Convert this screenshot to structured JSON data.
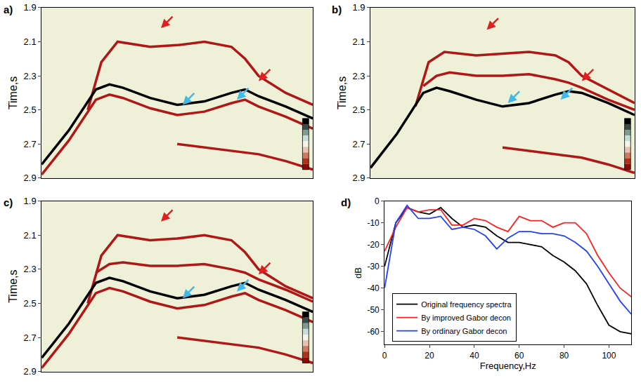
{
  "chart_data": [
    {
      "type": "seismic",
      "label": "a)",
      "y_label": "Time,s",
      "xlim": [
        0,
        100
      ],
      "ylim": [
        2.9,
        1.9
      ],
      "yticks": [
        1.9,
        2.1,
        2.3,
        2.5,
        2.7,
        2.9
      ],
      "tick_labels": "y",
      "series": [
        {
          "color": "#b01818",
          "x": [
            17,
            22,
            28,
            40,
            50,
            60,
            70,
            75,
            80,
            90,
            100
          ],
          "values": [
            2.5,
            2.22,
            2.1,
            2.13,
            2.12,
            2.1,
            2.13,
            2.2,
            2.3,
            2.4,
            2.47
          ]
        },
        {
          "color": "#000000",
          "x": [
            0,
            10,
            20,
            25,
            30,
            40,
            50,
            60,
            70,
            75,
            80,
            90,
            100
          ],
          "values": [
            2.82,
            2.62,
            2.38,
            2.35,
            2.37,
            2.43,
            2.47,
            2.45,
            2.4,
            2.38,
            2.42,
            2.48,
            2.55
          ]
        },
        {
          "color": "#b01818",
          "x": [
            0,
            10,
            20,
            25,
            30,
            40,
            50,
            60,
            70,
            75,
            80,
            90,
            100
          ],
          "values": [
            2.88,
            2.68,
            2.44,
            2.41,
            2.43,
            2.49,
            2.53,
            2.51,
            2.46,
            2.44,
            2.48,
            2.54,
            2.61
          ]
        },
        {
          "color": "#b01818",
          "x": [
            50,
            60,
            70,
            80,
            90,
            100
          ],
          "values": [
            2.7,
            2.72,
            2.74,
            2.76,
            2.8,
            2.85
          ]
        }
      ],
      "arrows": [
        {
          "x": 44,
          "y": 2.02,
          "color": "#e02020"
        },
        {
          "x": 80,
          "y": 2.33,
          "color": "#e02020"
        },
        {
          "x": 52,
          "y": 2.47,
          "color": "#40b8e8"
        },
        {
          "x": 72,
          "y": 2.44,
          "color": "#40b8e8"
        }
      ]
    },
    {
      "type": "seismic",
      "label": "b)",
      "y_label": "Time,s",
      "xlim": [
        0,
        100
      ],
      "ylim": [
        2.9,
        1.9
      ],
      "yticks": [
        1.9,
        2.1,
        2.3,
        2.5,
        2.7,
        2.9
      ],
      "tick_labels": "y",
      "series": [
        {
          "color": "#b01818",
          "x": [
            17,
            22,
            28,
            40,
            50,
            60,
            70,
            75,
            80,
            90,
            100
          ],
          "values": [
            2.48,
            2.22,
            2.16,
            2.18,
            2.17,
            2.16,
            2.18,
            2.22,
            2.3,
            2.38,
            2.46
          ]
        },
        {
          "color": "#b01818",
          "x": [
            20,
            25,
            30,
            40,
            50,
            60,
            70,
            75,
            80,
            90,
            100
          ],
          "values": [
            2.36,
            2.3,
            2.28,
            2.3,
            2.3,
            2.29,
            2.32,
            2.34,
            2.37,
            2.44,
            2.5
          ]
        },
        {
          "color": "#000000",
          "x": [
            0,
            10,
            20,
            25,
            30,
            40,
            50,
            60,
            70,
            75,
            80,
            90,
            100
          ],
          "values": [
            2.84,
            2.64,
            2.4,
            2.37,
            2.39,
            2.44,
            2.48,
            2.46,
            2.41,
            2.39,
            2.4,
            2.46,
            2.53
          ]
        },
        {
          "color": "#b01818",
          "x": [
            50,
            60,
            70,
            80,
            90,
            100
          ],
          "values": [
            2.72,
            2.74,
            2.76,
            2.78,
            2.82,
            2.87
          ]
        }
      ],
      "arrows": [
        {
          "x": 44,
          "y": 2.03,
          "color": "#e02020"
        },
        {
          "x": 80,
          "y": 2.33,
          "color": "#e02020"
        },
        {
          "x": 52,
          "y": 2.46,
          "color": "#40b8e8"
        },
        {
          "x": 72,
          "y": 2.44,
          "color": "#40b8e8"
        }
      ]
    },
    {
      "type": "seismic",
      "label": "c)",
      "y_label": "Time,s",
      "xlim": [
        0,
        100
      ],
      "ylim": [
        2.9,
        1.9
      ],
      "yticks": [
        1.9,
        2.1,
        2.3,
        2.5,
        2.7,
        2.9
      ],
      "tick_labels": "y",
      "series": [
        {
          "color": "#b01818",
          "x": [
            17,
            22,
            28,
            40,
            50,
            60,
            70,
            75,
            80,
            90,
            100
          ],
          "values": [
            2.5,
            2.22,
            2.1,
            2.13,
            2.12,
            2.1,
            2.13,
            2.2,
            2.3,
            2.4,
            2.47
          ]
        },
        {
          "color": "#b01818",
          "x": [
            20,
            25,
            30,
            40,
            50,
            60,
            70,
            75,
            80,
            90,
            100
          ],
          "values": [
            2.32,
            2.27,
            2.26,
            2.28,
            2.28,
            2.27,
            2.3,
            2.32,
            2.36,
            2.42,
            2.49
          ]
        },
        {
          "color": "#000000",
          "x": [
            0,
            10,
            20,
            25,
            30,
            40,
            50,
            60,
            70,
            75,
            80,
            90,
            100
          ],
          "values": [
            2.82,
            2.62,
            2.38,
            2.35,
            2.37,
            2.43,
            2.47,
            2.45,
            2.4,
            2.38,
            2.42,
            2.48,
            2.55
          ]
        },
        {
          "color": "#b01818",
          "x": [
            0,
            10,
            20,
            25,
            30,
            40,
            50,
            60,
            70,
            75,
            80,
            90,
            100
          ],
          "values": [
            2.88,
            2.68,
            2.44,
            2.41,
            2.43,
            2.49,
            2.53,
            2.51,
            2.46,
            2.44,
            2.48,
            2.54,
            2.61
          ]
        },
        {
          "color": "#b01818",
          "x": [
            50,
            60,
            70,
            80,
            90,
            100
          ],
          "values": [
            2.7,
            2.72,
            2.74,
            2.76,
            2.8,
            2.85
          ]
        }
      ],
      "arrows": [
        {
          "x": 44,
          "y": 2.02,
          "color": "#e02020"
        },
        {
          "x": 80,
          "y": 2.33,
          "color": "#e02020"
        },
        {
          "x": 52,
          "y": 2.47,
          "color": "#40b8e8"
        },
        {
          "x": 72,
          "y": 2.43,
          "color": "#40b8e8"
        }
      ]
    },
    {
      "type": "line",
      "label": "d)",
      "x_label": "Frequency,Hz",
      "y_label": "dB",
      "x": [
        0,
        5,
        10,
        15,
        20,
        25,
        30,
        35,
        40,
        45,
        50,
        55,
        60,
        65,
        70,
        75,
        80,
        85,
        90,
        95,
        100,
        105,
        110
      ],
      "xlim": [
        0,
        110
      ],
      "xticks": [
        0,
        20,
        40,
        60,
        80,
        100
      ],
      "ylim": [
        -66,
        0
      ],
      "yticks": [
        0,
        -10,
        -20,
        -30,
        -40,
        -50,
        -60
      ],
      "legend": "lower left",
      "series": [
        {
          "name": "Original frequency spectra",
          "color": "#000000",
          "values": [
            -30,
            -10,
            -3,
            -5,
            -6,
            -3,
            -8,
            -12,
            -11,
            -12,
            -16,
            -19,
            -19,
            -20,
            -21,
            -25,
            -28,
            -32,
            -38,
            -48,
            -57,
            -60,
            -61
          ]
        },
        {
          "name": "By improved Gabor decon",
          "color": "#ff2020",
          "values": [
            -23,
            -12,
            -3,
            -5,
            -4,
            -4,
            -11,
            -11,
            -8,
            -9,
            -12,
            -14,
            -7,
            -9,
            -9,
            -12,
            -10,
            -10,
            -15,
            -25,
            -33,
            -40,
            -44
          ]
        },
        {
          "name": "By ordinary Gabor decon",
          "color": "#2040ff",
          "values": [
            -40,
            -10,
            -2,
            -8,
            -8,
            -7,
            -13,
            -12,
            -13,
            -16,
            -22,
            -17,
            -14,
            -14,
            -15,
            -15,
            -16,
            -19,
            -23,
            -30,
            -38,
            -46,
            -52
          ]
        }
      ]
    }
  ]
}
